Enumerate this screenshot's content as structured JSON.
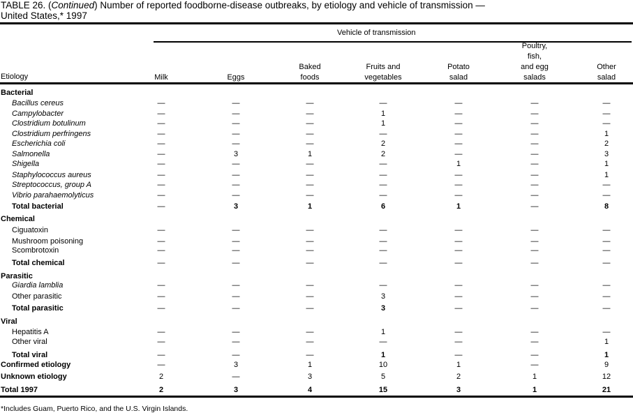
{
  "title": {
    "prefix": "TABLE 26. (",
    "continued": "Continued",
    "rest": ") Number of reported foodborne-disease  outbreaks, by etiology and vehicle of transmission —",
    "line2": "United States,* 1997"
  },
  "header": {
    "group_label": "Vehicle of transmission",
    "etiology_label": "Etiology",
    "columns": [
      [
        "Milk"
      ],
      [
        "Eggs"
      ],
      [
        "Baked",
        "foods"
      ],
      [
        "Fruits and",
        "vegetables"
      ],
      [
        "Potato",
        "salad"
      ],
      [
        "Poultry,",
        "fish,",
        "and egg",
        "salads"
      ],
      [
        "Other",
        "salad"
      ]
    ]
  },
  "rows": [
    {
      "label": "Bacterial",
      "kind": "group",
      "values": []
    },
    {
      "label": "Bacillus cereus",
      "kind": "italic",
      "values": [
        "—",
        "—",
        "—",
        "—",
        "—",
        "—",
        "—"
      ]
    },
    {
      "label": "Campylobacter",
      "kind": "italic",
      "values": [
        "—",
        "—",
        "—",
        "1",
        "—",
        "—",
        "—"
      ]
    },
    {
      "label": "Clostridium botulinum",
      "kind": "italic",
      "values": [
        "—",
        "—",
        "—",
        "1",
        "—",
        "—",
        "—"
      ]
    },
    {
      "label": "Clostridium perfringens",
      "kind": "italic",
      "values": [
        "—",
        "—",
        "—",
        "—",
        "—",
        "—",
        "1"
      ]
    },
    {
      "label": "Escherichia coli",
      "kind": "italic",
      "values": [
        "—",
        "—",
        "—",
        "2",
        "—",
        "—",
        "2"
      ]
    },
    {
      "label": "Salmonella",
      "kind": "italic",
      "values": [
        "—",
        "3",
        "1",
        "2",
        "—",
        "—",
        "3"
      ]
    },
    {
      "label": "Shigella",
      "kind": "italic",
      "values": [
        "—",
        "—",
        "—",
        "—",
        "1",
        "—",
        "1"
      ]
    },
    {
      "label": "Staphylococcus aureus",
      "kind": "italic",
      "values": [
        "—",
        "—",
        "—",
        "—",
        "—",
        "—",
        "1"
      ]
    },
    {
      "label": "Streptococcus, group A",
      "kind": "italic",
      "values": [
        "—",
        "—",
        "—",
        "—",
        "—",
        "—",
        "—"
      ]
    },
    {
      "label": "Vibrio parahaemolyticus",
      "kind": "italic",
      "values": [
        "—",
        "—",
        "—",
        "—",
        "—",
        "—",
        "—"
      ]
    },
    {
      "label": "Total bacterial",
      "kind": "total",
      "values": [
        "—",
        "3",
        "1",
        "6",
        "1",
        "—",
        "8"
      ]
    },
    {
      "label": "Chemical",
      "kind": "group",
      "values": []
    },
    {
      "label": "Ciguatoxin",
      "kind": "item",
      "values": [
        "—",
        "—",
        "—",
        "—",
        "—",
        "—",
        "—"
      ]
    },
    {
      "label": "Mushroom poisoning",
      "kind": "item",
      "values": [
        "—",
        "—",
        "—",
        "—",
        "—",
        "—",
        "—"
      ]
    },
    {
      "label": "Scombrotoxin",
      "kind": "item",
      "values": [
        "—",
        "—",
        "—",
        "—",
        "—",
        "—",
        "—"
      ]
    },
    {
      "label": "Total chemical",
      "kind": "total",
      "values": [
        "—",
        "—",
        "—",
        "—",
        "—",
        "—",
        "—"
      ]
    },
    {
      "label": "Parasitic",
      "kind": "group",
      "values": []
    },
    {
      "label": "Giardia lamblia",
      "kind": "italic",
      "values": [
        "—",
        "—",
        "—",
        "—",
        "—",
        "—",
        "—"
      ]
    },
    {
      "label": "Other parasitic",
      "kind": "item",
      "values": [
        "—",
        "—",
        "—",
        "3",
        "—",
        "—",
        "—"
      ]
    },
    {
      "label": "Total parasitic",
      "kind": "total",
      "values": [
        "—",
        "—",
        "—",
        "3",
        "—",
        "—",
        "—"
      ]
    },
    {
      "label": "Viral",
      "kind": "group",
      "values": []
    },
    {
      "label": "Hepatitis A",
      "kind": "item",
      "values": [
        "—",
        "—",
        "—",
        "1",
        "—",
        "—",
        "—"
      ]
    },
    {
      "label": "Other viral",
      "kind": "item",
      "values": [
        "—",
        "—",
        "—",
        "—",
        "—",
        "—",
        "1"
      ]
    },
    {
      "label": "Total viral",
      "kind": "total",
      "values": [
        "—",
        "—",
        "—",
        "1",
        "—",
        "—",
        "1"
      ]
    },
    {
      "label": "Confirmed etiology",
      "kind": "summary",
      "values": [
        "—",
        "3",
        "1",
        "10",
        "1",
        "—",
        "9"
      ]
    },
    {
      "label": "Unknown etiology",
      "kind": "summary",
      "values": [
        "2",
        "—",
        "3",
        "5",
        "2",
        "1",
        "12"
      ]
    },
    {
      "label": "Total 1997",
      "kind": "grand",
      "values": [
        "2",
        "3",
        "4",
        "15",
        "3",
        "1",
        "21"
      ]
    }
  ],
  "footnote": "*Includes Guam, Puerto Rico, and the U.S. Virgin Islands."
}
